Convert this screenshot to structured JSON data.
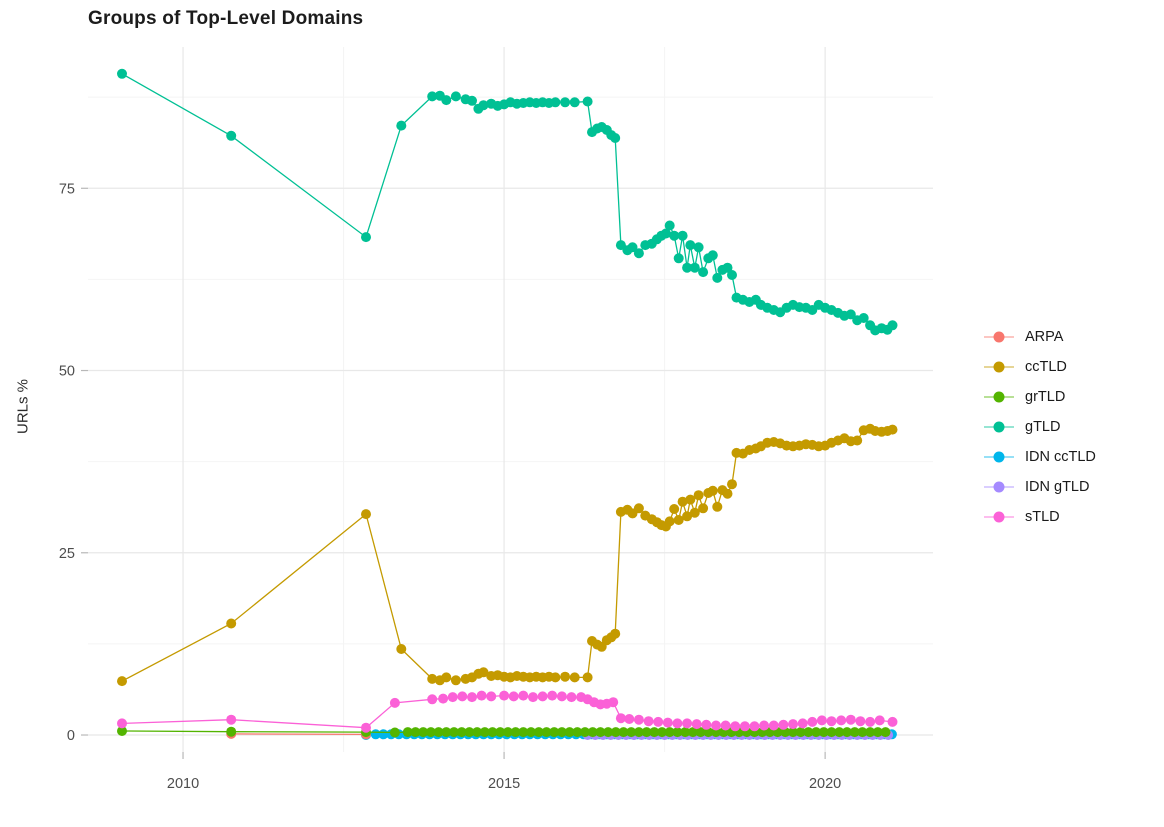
{
  "title": "Groups of Top-Level Domains",
  "y_axis_label": "URLs %",
  "chart_data": {
    "type": "line",
    "title": "Groups of Top-Level Domains",
    "xlabel": "",
    "ylabel": "URLs %",
    "grid": true,
    "legend_position": "right",
    "xlim": [
      2008.52,
      2021.68
    ],
    "ylim": [
      -2.33,
      94.38
    ],
    "x_ticks": [
      2010,
      2015,
      2020
    ],
    "x_minor_ticks": [
      2012.5,
      2017.5
    ],
    "y_ticks": [
      0,
      25,
      50,
      75
    ],
    "y_minor_ticks": [
      12.5,
      37.5,
      62.5,
      87.5
    ],
    "colors": {
      "major_grid": "#e8e8e8",
      "minor_grid": "#f4f4f4",
      "tick_mark": "#b8b8b8",
      "tick_label": "#4d4d4d",
      "background": "#ffffff"
    },
    "draw_order": [
      "IDN ccTLD",
      "IDN gTLD",
      "ARPA",
      "grTLD",
      "ccTLD",
      "gTLD",
      "sTLD"
    ],
    "series": [
      {
        "name": "ARPA",
        "color": "#F8766D",
        "points": [
          [
            2010.75,
            0.15
          ],
          [
            2012.85,
            0.08
          ]
        ]
      },
      {
        "name": "ccTLD",
        "color": "#C49A00",
        "points": [
          [
            2009.05,
            7.4
          ],
          [
            2010.75,
            15.3
          ],
          [
            2012.85,
            30.3
          ],
          [
            2013.4,
            11.8
          ],
          [
            2013.88,
            7.7
          ],
          [
            2014.0,
            7.5
          ],
          [
            2014.1,
            7.9
          ],
          [
            2014.25,
            7.5
          ],
          [
            2014.4,
            7.7
          ],
          [
            2014.5,
            7.9
          ],
          [
            2014.6,
            8.4
          ],
          [
            2014.68,
            8.6
          ],
          [
            2014.8,
            8.1
          ],
          [
            2014.9,
            8.2
          ],
          [
            2015.0,
            8.0
          ],
          [
            2015.1,
            7.9
          ],
          [
            2015.2,
            8.1
          ],
          [
            2015.3,
            8.0
          ],
          [
            2015.4,
            7.9
          ],
          [
            2015.5,
            8.0
          ],
          [
            2015.6,
            7.9
          ],
          [
            2015.7,
            8.0
          ],
          [
            2015.8,
            7.9
          ],
          [
            2015.95,
            8.0
          ],
          [
            2016.1,
            7.9
          ],
          [
            2016.3,
            7.9
          ],
          [
            2016.37,
            12.9
          ],
          [
            2016.45,
            12.4
          ],
          [
            2016.52,
            12.1
          ],
          [
            2016.6,
            13.0
          ],
          [
            2016.67,
            13.4
          ],
          [
            2016.73,
            13.9
          ],
          [
            2016.82,
            30.6
          ],
          [
            2016.92,
            30.9
          ],
          [
            2017.0,
            30.4
          ],
          [
            2017.1,
            31.1
          ],
          [
            2017.2,
            30.1
          ],
          [
            2017.3,
            29.6
          ],
          [
            2017.38,
            29.2
          ],
          [
            2017.45,
            28.8
          ],
          [
            2017.52,
            28.6
          ],
          [
            2017.58,
            29.3
          ],
          [
            2017.65,
            31.0
          ],
          [
            2017.72,
            29.5
          ],
          [
            2017.78,
            32.0
          ],
          [
            2017.85,
            30.0
          ],
          [
            2017.9,
            32.3
          ],
          [
            2017.97,
            30.5
          ],
          [
            2018.03,
            32.9
          ],
          [
            2018.1,
            31.1
          ],
          [
            2018.18,
            33.2
          ],
          [
            2018.25,
            33.5
          ],
          [
            2018.32,
            31.3
          ],
          [
            2018.4,
            33.6
          ],
          [
            2018.48,
            33.1
          ],
          [
            2018.55,
            34.4
          ],
          [
            2018.62,
            38.7
          ],
          [
            2018.72,
            38.6
          ],
          [
            2018.82,
            39.1
          ],
          [
            2018.92,
            39.3
          ],
          [
            2019.0,
            39.6
          ],
          [
            2019.1,
            40.1
          ],
          [
            2019.2,
            40.2
          ],
          [
            2019.3,
            40.0
          ],
          [
            2019.4,
            39.7
          ],
          [
            2019.5,
            39.6
          ],
          [
            2019.6,
            39.7
          ],
          [
            2019.7,
            39.9
          ],
          [
            2019.8,
            39.8
          ],
          [
            2019.9,
            39.6
          ],
          [
            2020.0,
            39.7
          ],
          [
            2020.1,
            40.1
          ],
          [
            2020.2,
            40.4
          ],
          [
            2020.3,
            40.7
          ],
          [
            2020.4,
            40.3
          ],
          [
            2020.5,
            40.4
          ],
          [
            2020.6,
            41.8
          ],
          [
            2020.7,
            42.0
          ],
          [
            2020.78,
            41.7
          ],
          [
            2020.88,
            41.6
          ],
          [
            2020.97,
            41.7
          ],
          [
            2021.05,
            41.9
          ]
        ]
      },
      {
        "name": "grTLD",
        "color": "#53B400",
        "points": [
          [
            2009.05,
            0.55
          ],
          [
            2010.75,
            0.45
          ],
          [
            2012.85,
            0.4
          ],
          [
            2013.3,
            0.35
          ]
        ],
        "fill_range": {
          "from": 2013.5,
          "to": 2021.05,
          "step": 0.12,
          "value": 0.4
        }
      },
      {
        "name": "gTLD",
        "color": "#00C094",
        "points": [
          [
            2009.05,
            90.7
          ],
          [
            2010.75,
            82.2
          ],
          [
            2012.85,
            68.3
          ],
          [
            2013.4,
            83.6
          ],
          [
            2013.88,
            87.6
          ],
          [
            2014.0,
            87.7
          ],
          [
            2014.1,
            87.1
          ],
          [
            2014.25,
            87.6
          ],
          [
            2014.4,
            87.2
          ],
          [
            2014.5,
            87.0
          ],
          [
            2014.6,
            85.9
          ],
          [
            2014.68,
            86.4
          ],
          [
            2014.8,
            86.6
          ],
          [
            2014.9,
            86.3
          ],
          [
            2015.0,
            86.5
          ],
          [
            2015.1,
            86.8
          ],
          [
            2015.2,
            86.6
          ],
          [
            2015.3,
            86.7
          ],
          [
            2015.4,
            86.8
          ],
          [
            2015.5,
            86.7
          ],
          [
            2015.6,
            86.8
          ],
          [
            2015.7,
            86.7
          ],
          [
            2015.8,
            86.8
          ],
          [
            2015.95,
            86.8
          ],
          [
            2016.1,
            86.8
          ],
          [
            2016.3,
            86.9
          ],
          [
            2016.37,
            82.7
          ],
          [
            2016.45,
            83.2
          ],
          [
            2016.52,
            83.4
          ],
          [
            2016.6,
            83.0
          ],
          [
            2016.67,
            82.3
          ],
          [
            2016.73,
            81.9
          ],
          [
            2016.82,
            67.2
          ],
          [
            2016.92,
            66.5
          ],
          [
            2017.0,
            66.9
          ],
          [
            2017.1,
            66.1
          ],
          [
            2017.2,
            67.2
          ],
          [
            2017.3,
            67.4
          ],
          [
            2017.38,
            68.0
          ],
          [
            2017.45,
            68.5
          ],
          [
            2017.52,
            68.8
          ],
          [
            2017.58,
            69.9
          ],
          [
            2017.65,
            68.5
          ],
          [
            2017.72,
            65.4
          ],
          [
            2017.78,
            68.5
          ],
          [
            2017.85,
            64.1
          ],
          [
            2017.9,
            67.2
          ],
          [
            2017.97,
            64.1
          ],
          [
            2018.03,
            66.9
          ],
          [
            2018.1,
            63.5
          ],
          [
            2018.18,
            65.4
          ],
          [
            2018.25,
            65.8
          ],
          [
            2018.32,
            62.7
          ],
          [
            2018.4,
            63.8
          ],
          [
            2018.48,
            64.1
          ],
          [
            2018.55,
            63.1
          ],
          [
            2018.62,
            60.0
          ],
          [
            2018.72,
            59.7
          ],
          [
            2018.82,
            59.4
          ],
          [
            2018.92,
            59.7
          ],
          [
            2019.0,
            59.0
          ],
          [
            2019.1,
            58.6
          ],
          [
            2019.2,
            58.3
          ],
          [
            2019.3,
            58.0
          ],
          [
            2019.4,
            58.6
          ],
          [
            2019.5,
            59.0
          ],
          [
            2019.6,
            58.7
          ],
          [
            2019.7,
            58.6
          ],
          [
            2019.8,
            58.3
          ],
          [
            2019.9,
            59.0
          ],
          [
            2020.0,
            58.6
          ],
          [
            2020.1,
            58.3
          ],
          [
            2020.2,
            57.9
          ],
          [
            2020.3,
            57.5
          ],
          [
            2020.4,
            57.7
          ],
          [
            2020.5,
            56.9
          ],
          [
            2020.6,
            57.2
          ],
          [
            2020.7,
            56.2
          ],
          [
            2020.78,
            55.5
          ],
          [
            2020.88,
            55.8
          ],
          [
            2020.97,
            55.6
          ],
          [
            2021.05,
            56.2
          ]
        ]
      },
      {
        "name": "IDN ccTLD",
        "color": "#00B6EB",
        "points": [
          [
            2012.85,
            0.0
          ]
        ],
        "fill_range": {
          "from": 2013.0,
          "to": 2021.05,
          "step": 0.12,
          "value": 0.1
        }
      },
      {
        "name": "IDN gTLD",
        "color": "#A58AFF",
        "fill_range": {
          "from": 2016.3,
          "to": 2021.05,
          "step": 0.12,
          "value": 0.0
        }
      },
      {
        "name": "sTLD",
        "color": "#FB61D7",
        "points": [
          [
            2009.05,
            1.6
          ],
          [
            2010.75,
            2.1
          ],
          [
            2012.85,
            1.0
          ],
          [
            2013.3,
            4.4
          ],
          [
            2013.88,
            4.9
          ],
          [
            2014.05,
            5.0
          ],
          [
            2014.2,
            5.2
          ],
          [
            2014.35,
            5.3
          ],
          [
            2014.5,
            5.2
          ],
          [
            2014.65,
            5.4
          ],
          [
            2014.8,
            5.3
          ],
          [
            2015.0,
            5.4
          ],
          [
            2015.15,
            5.3
          ],
          [
            2015.3,
            5.4
          ],
          [
            2015.45,
            5.2
          ],
          [
            2015.6,
            5.3
          ],
          [
            2015.75,
            5.4
          ],
          [
            2015.9,
            5.3
          ],
          [
            2016.05,
            5.2
          ],
          [
            2016.2,
            5.2
          ],
          [
            2016.3,
            4.9
          ],
          [
            2016.4,
            4.5
          ],
          [
            2016.5,
            4.2
          ],
          [
            2016.6,
            4.3
          ],
          [
            2016.7,
            4.5
          ],
          [
            2016.82,
            2.3
          ],
          [
            2016.95,
            2.2
          ],
          [
            2017.1,
            2.1
          ],
          [
            2017.25,
            1.9
          ],
          [
            2017.4,
            1.8
          ],
          [
            2017.55,
            1.7
          ],
          [
            2017.7,
            1.6
          ],
          [
            2017.85,
            1.6
          ],
          [
            2018.0,
            1.5
          ],
          [
            2018.15,
            1.4
          ],
          [
            2018.3,
            1.3
          ],
          [
            2018.45,
            1.3
          ],
          [
            2018.6,
            1.2
          ],
          [
            2018.75,
            1.2
          ],
          [
            2018.9,
            1.2
          ],
          [
            2019.05,
            1.3
          ],
          [
            2019.2,
            1.3
          ],
          [
            2019.35,
            1.4
          ],
          [
            2019.5,
            1.5
          ],
          [
            2019.65,
            1.6
          ],
          [
            2019.8,
            1.8
          ],
          [
            2019.95,
            2.0
          ],
          [
            2020.1,
            1.9
          ],
          [
            2020.25,
            2.0
          ],
          [
            2020.4,
            2.1
          ],
          [
            2020.55,
            1.9
          ],
          [
            2020.7,
            1.8
          ],
          [
            2020.85,
            2.0
          ],
          [
            2021.05,
            1.8
          ]
        ]
      }
    ]
  }
}
